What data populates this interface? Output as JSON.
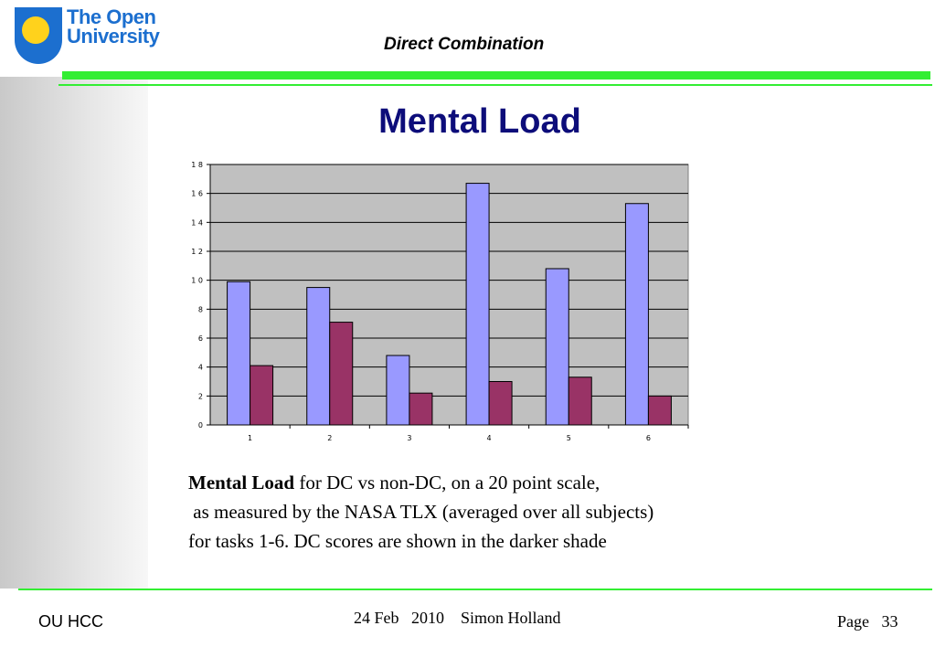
{
  "header": {
    "logo_line1": "The Open",
    "logo_line2": "University",
    "title": "Direct  Combination"
  },
  "slide": {
    "title": "Mental Load"
  },
  "chart_data": {
    "type": "bar",
    "categories": [
      "1",
      "2",
      "3",
      "4",
      "5",
      "6"
    ],
    "series": [
      {
        "values": [
          9.9,
          9.5,
          4.8,
          16.7,
          10.8,
          15.3
        ],
        "color": "#9999ff"
      },
      {
        "values": [
          4.1,
          7.1,
          2.2,
          3.0,
          3.3,
          2.0
        ],
        "color": "#993366"
      }
    ],
    "y_ticks": [
      "0",
      "2",
      "4",
      "6",
      "8",
      "1 0",
      "1 2",
      "1 4",
      "1 6",
      "1 8"
    ],
    "ylim": [
      0,
      18
    ],
    "grid": true,
    "legend": "none",
    "plot_background": "#c0c0c0"
  },
  "caption": {
    "bold": "Mental Load",
    "line1_rest": " for DC vs non-DC, on a 20 point scale,",
    "line2": " as measured by the NASA TLX (averaged over all subjects)",
    "line3": "for tasks 1-6. DC scores are shown in the darker shade"
  },
  "footer": {
    "left": "OU HCC",
    "center": "24 Feb   2010    Simon Holland",
    "right": "Page   33"
  }
}
